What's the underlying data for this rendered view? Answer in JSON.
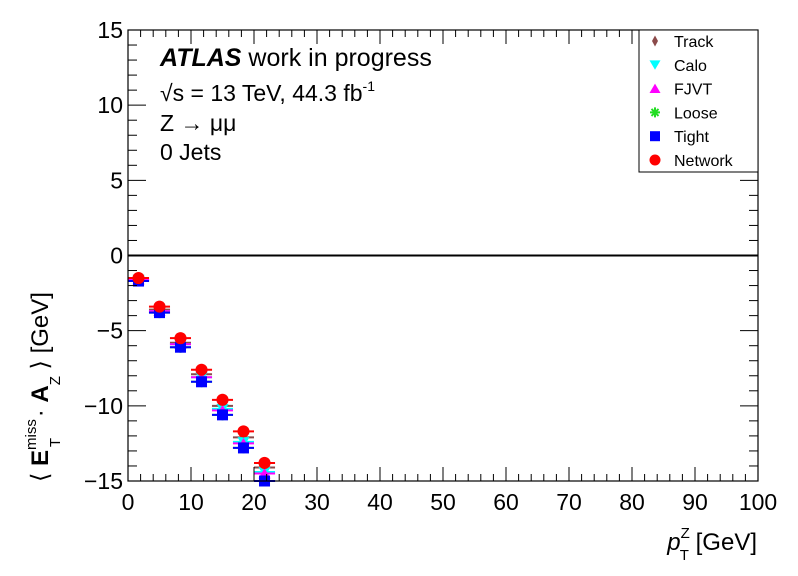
{
  "chart_data": {
    "type": "scatter",
    "xlim": [
      0,
      100
    ],
    "ylim": [
      -15,
      15
    ],
    "xticks": [
      0,
      10,
      20,
      30,
      40,
      50,
      60,
      70,
      80,
      90,
      100
    ],
    "yticks": [
      -15,
      -10,
      -5,
      0,
      5,
      10,
      15
    ],
    "xtick_labels": [
      "0",
      "10",
      "20",
      "30",
      "40",
      "50",
      "60",
      "70",
      "80",
      "90",
      "100"
    ],
    "ytick_labels": [
      "−15",
      "−10",
      "−5",
      "0",
      "5",
      "10",
      "15"
    ],
    "xlabel": {
      "base": "p",
      "sup": "Z",
      "sub": "T",
      "unit": " [GeV]"
    },
    "ylabel": {
      "open": "⟨ ",
      "e": "E",
      "e_sup": "miss",
      "e_sub": "T",
      "dot": " · ",
      "a": "A",
      "a_sub": "Z",
      "close": " ⟩ [GeV]"
    },
    "annotations": {
      "atlas": "ATLAS",
      "atlas_suffix": " work in progress",
      "energy": "√s = 13 TeV, 44.3 fb",
      "energy_sup": "-1",
      "process": "Z → μμ",
      "jets": "0 Jets"
    },
    "zero_line": 0,
    "grid": false,
    "legend_position": "top-right",
    "x": [
      1.67,
      5,
      8.33,
      11.67,
      15,
      18.33,
      21.67
    ],
    "xerr": 1.67,
    "series": [
      {
        "name": "Track",
        "color": "#8b4a4a",
        "marker": "diamond",
        "values": [
          -1.6,
          -3.6,
          -5.8,
          -7.9,
          -10.0,
          -12.1,
          -14.1
        ]
      },
      {
        "name": "Calo",
        "color": "#00ffff",
        "marker": "triangle-down",
        "values": [
          -1.6,
          -3.7,
          -5.9,
          -8.1,
          -10.2,
          -12.4,
          -14.4
        ]
      },
      {
        "name": "FJVT",
        "color": "#ff00ff",
        "marker": "triangle-up",
        "values": [
          -1.6,
          -3.7,
          -5.9,
          -8.1,
          -10.3,
          -12.5,
          -14.5
        ]
      },
      {
        "name": "Loose",
        "color": "#22dd22",
        "marker": "star",
        "values": [
          -1.7,
          -3.8,
          -6.1,
          -8.4,
          -10.6,
          -12.8,
          -15.0
        ]
      },
      {
        "name": "Tight",
        "color": "#0000ff",
        "marker": "square",
        "values": [
          -1.7,
          -3.8,
          -6.1,
          -8.4,
          -10.6,
          -12.8,
          -15.0
        ]
      },
      {
        "name": "Network",
        "color": "#ff0000",
        "marker": "circle",
        "values": [
          -1.5,
          -3.4,
          -5.5,
          -7.6,
          -9.6,
          -11.7,
          -13.8
        ]
      }
    ]
  }
}
